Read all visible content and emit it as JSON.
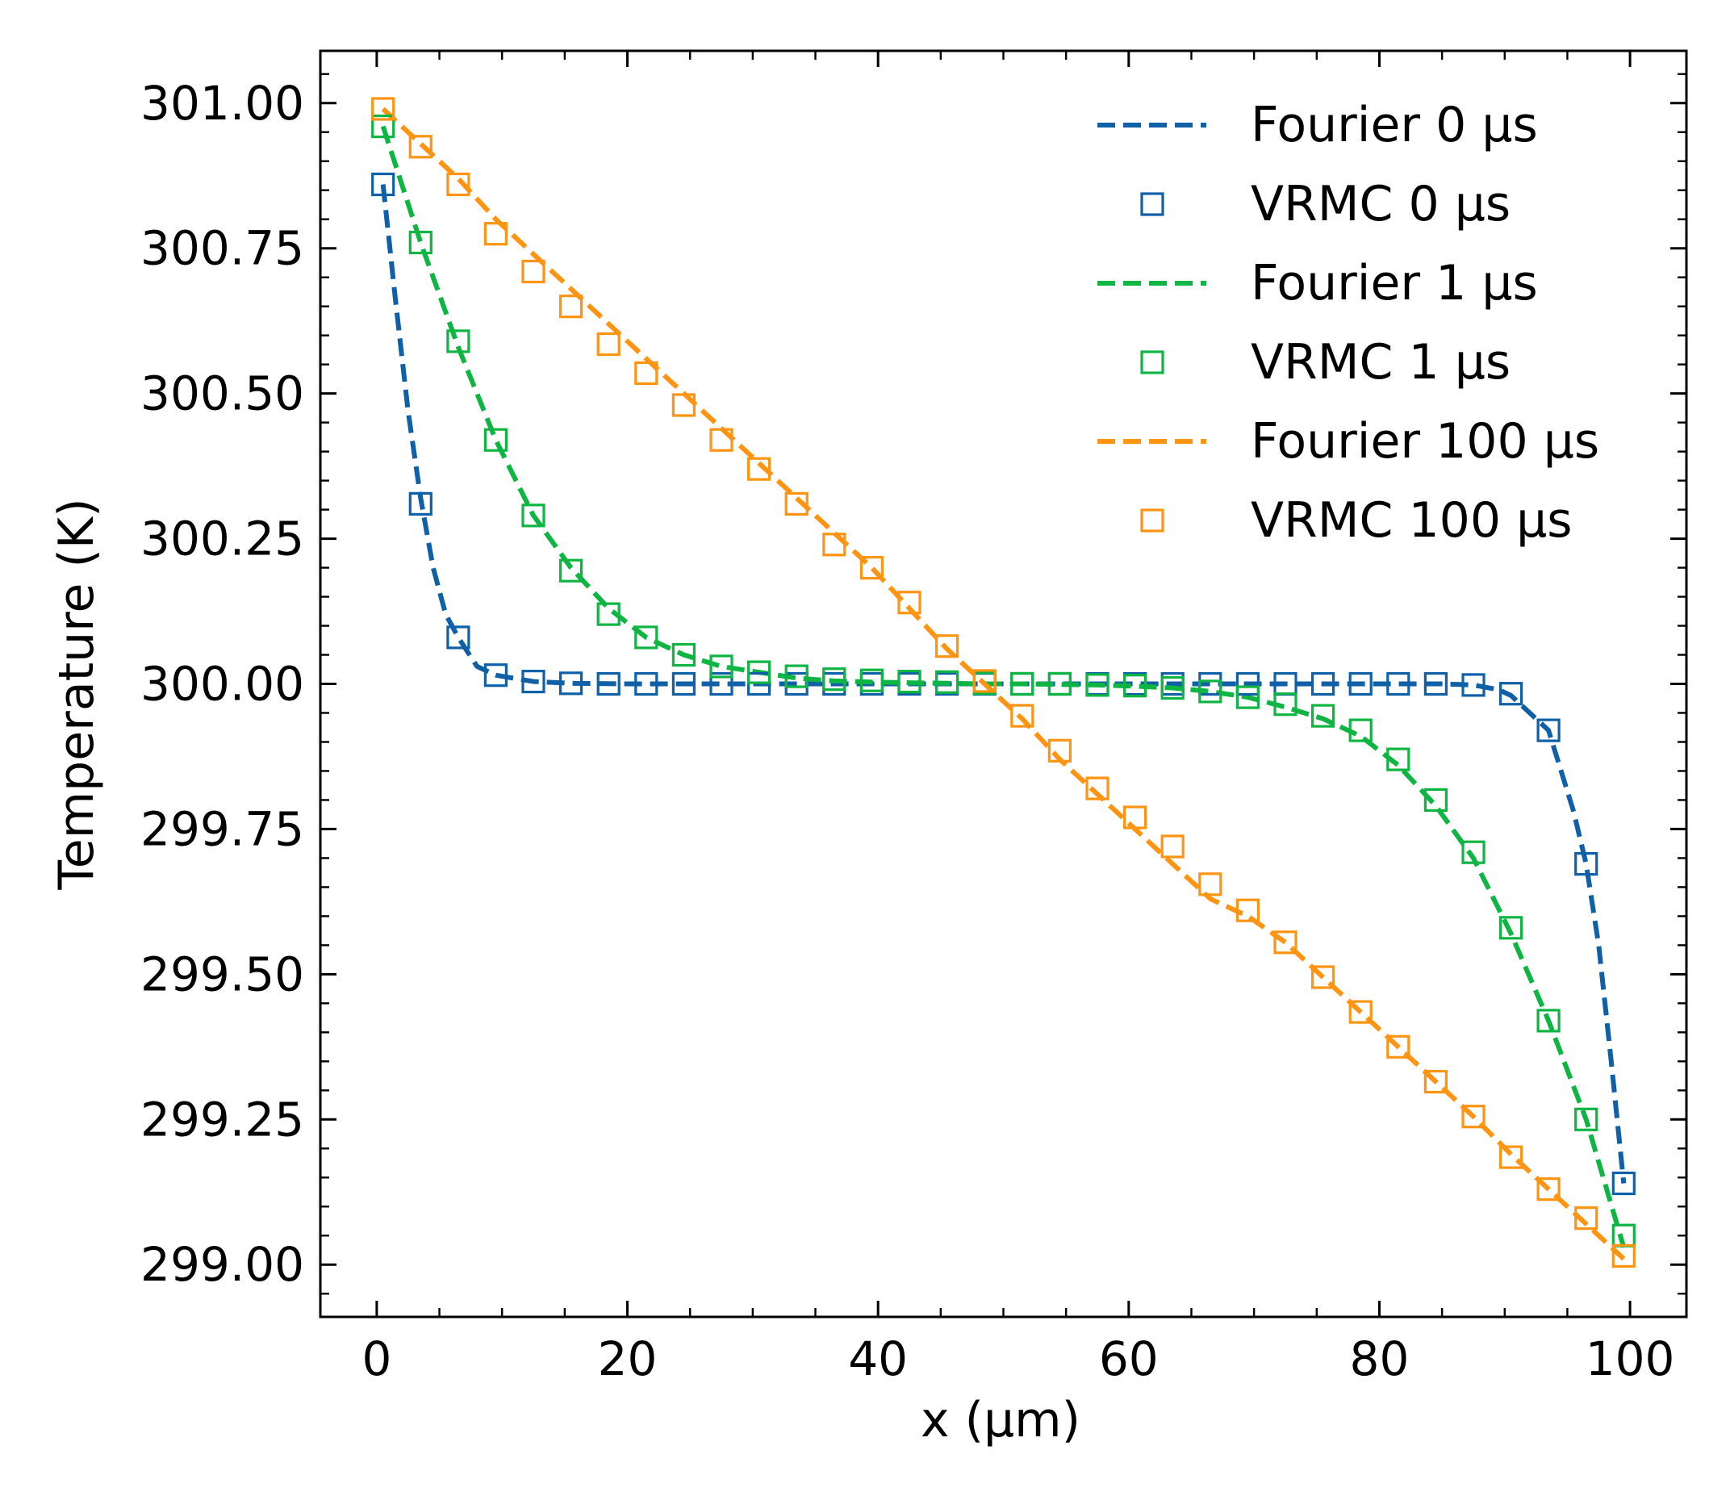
{
  "chart_data": {
    "type": "line",
    "xlabel": "x (μm)",
    "ylabel": "Temperature (K)",
    "xlim": [
      -4.5,
      104.5
    ],
    "ylim": [
      298.91,
      301.09
    ],
    "xticks": [
      0,
      20,
      40,
      60,
      80,
      100
    ],
    "yticks": [
      299.0,
      299.25,
      299.5,
      299.75,
      300.0,
      300.25,
      300.5,
      300.75,
      301.0
    ],
    "xtick_labels": [
      "0",
      "20",
      "40",
      "60",
      "80",
      "100"
    ],
    "ytick_labels": [
      "299.00",
      "299.25",
      "299.50",
      "299.75",
      "300.00",
      "300.25",
      "300.50",
      "300.75",
      "301.00"
    ],
    "legend_position": "top-right",
    "grid": false,
    "x": [
      0.5,
      3.5,
      6.5,
      9.5,
      12.5,
      15.5,
      18.5,
      21.5,
      24.5,
      27.5,
      30.5,
      33.5,
      36.5,
      39.5,
      42.5,
      45.5,
      48.5,
      51.5,
      54.5,
      57.5,
      60.5,
      63.5,
      66.5,
      69.5,
      72.5,
      75.5,
      78.5,
      81.5,
      84.5,
      87.5,
      90.5,
      93.5,
      96.5,
      99.5
    ],
    "series": [
      {
        "name": "Fourier 0 μs",
        "style": "dashed",
        "color": "#1060a8",
        "x": [
          0.5,
          1.5,
          2.5,
          3.5,
          4.5,
          5.5,
          6.5,
          8.0,
          9.5,
          12.5,
          15.5,
          20,
          30,
          40,
          50,
          60,
          70,
          80,
          85,
          87.5,
          89.5,
          90.5,
          91.5,
          92.5,
          93.5,
          94.5,
          95.5,
          96.5,
          97.5,
          98.5,
          99.5
        ],
        "values": [
          300.86,
          300.66,
          300.47,
          300.32,
          300.2,
          300.12,
          300.08,
          300.03,
          300.015,
          300.004,
          300.001,
          300.0,
          300.0,
          300.0,
          300.0,
          300.0,
          300.0,
          300.0,
          300.0,
          299.998,
          299.99,
          299.98,
          299.96,
          299.94,
          299.92,
          299.85,
          299.78,
          299.69,
          299.55,
          299.35,
          299.14
        ]
      },
      {
        "name": "VRMC 0 μs",
        "style": "markers",
        "color": "#1060a8",
        "values": [
          300.86,
          300.31,
          300.08,
          300.015,
          300.004,
          300.001,
          300.0,
          300.0,
          300.0,
          300.0,
          300.0,
          300.0,
          300.0,
          300.0,
          300.0,
          300.0,
          300.0,
          300.0,
          300.0,
          300.0,
          300.0,
          300.0,
          300.0,
          300.0,
          300.0,
          300.0,
          300.0,
          300.0,
          300.0,
          299.998,
          299.983,
          299.92,
          299.69,
          299.14
        ]
      },
      {
        "name": "Fourier 1 μs",
        "style": "dashed",
        "color": "#0fb543",
        "x": [
          0.5,
          3.5,
          6.5,
          9.5,
          12.5,
          15.5,
          18.5,
          21.5,
          24.5,
          27.5,
          30.5,
          33.5,
          36.5,
          39.5,
          42.5,
          45.5,
          48.5,
          51.5,
          54.5,
          57.5,
          60.5,
          63.5,
          66.5,
          69.5,
          72.5,
          75.5,
          78.5,
          81.5,
          84.5,
          87.5,
          90.5,
          93.5,
          96.5,
          99.5
        ],
        "values": [
          300.96,
          300.76,
          300.58,
          300.42,
          300.29,
          300.2,
          300.13,
          300.08,
          300.05,
          300.03,
          300.02,
          300.01,
          300.005,
          300.003,
          300.002,
          300.001,
          300.0,
          300.0,
          299.999,
          299.998,
          299.996,
          299.993,
          299.987,
          299.977,
          299.96,
          299.94,
          299.91,
          299.86,
          299.79,
          299.7,
          299.57,
          299.42,
          299.25,
          299.03
        ]
      },
      {
        "name": "VRMC 1 μs",
        "style": "markers",
        "color": "#0fb543",
        "values": [
          300.96,
          300.76,
          300.59,
          300.42,
          300.29,
          300.195,
          300.12,
          300.08,
          300.05,
          300.03,
          300.02,
          300.013,
          300.008,
          300.006,
          300.004,
          300.003,
          300.001,
          300.0,
          300.0,
          299.998,
          299.997,
          299.993,
          299.987,
          299.977,
          299.965,
          299.945,
          299.92,
          299.87,
          299.8,
          299.71,
          299.58,
          299.42,
          299.25,
          299.05
        ]
      },
      {
        "name": "Fourier 100 μs",
        "style": "dashed",
        "color": "#ff9412",
        "x": [
          0.5,
          3.5,
          6.5,
          9.5,
          12.5,
          15.5,
          18.5,
          21.5,
          24.5,
          27.5,
          30.5,
          33.5,
          36.5,
          39.5,
          42.5,
          45.5,
          48.5,
          51.5,
          54.5,
          57.5,
          60.5,
          63.5,
          66.5,
          69.5,
          72.5,
          75.5,
          78.5,
          81.5,
          84.5,
          87.5,
          90.5,
          93.5,
          96.5,
          99.5
        ],
        "values": [
          300.99,
          300.93,
          300.87,
          300.8,
          300.74,
          300.68,
          300.62,
          300.56,
          300.5,
          300.44,
          300.38,
          300.32,
          300.26,
          300.2,
          300.13,
          300.06,
          300.0,
          299.94,
          299.87,
          299.81,
          299.75,
          299.69,
          299.63,
          299.6,
          299.555,
          299.495,
          299.435,
          299.375,
          299.315,
          299.255,
          299.19,
          299.13,
          299.07,
          299.01
        ]
      },
      {
        "name": "VRMC 100 μs",
        "style": "markers",
        "color": "#ff9412",
        "values": [
          300.99,
          300.925,
          300.86,
          300.775,
          300.71,
          300.65,
          300.585,
          300.535,
          300.48,
          300.42,
          300.37,
          300.31,
          300.24,
          300.2,
          300.14,
          300.065,
          300.005,
          299.945,
          299.885,
          299.82,
          299.77,
          299.72,
          299.655,
          299.61,
          299.555,
          299.495,
          299.435,
          299.375,
          299.315,
          299.255,
          299.185,
          299.13,
          299.08,
          299.015
        ]
      }
    ]
  }
}
